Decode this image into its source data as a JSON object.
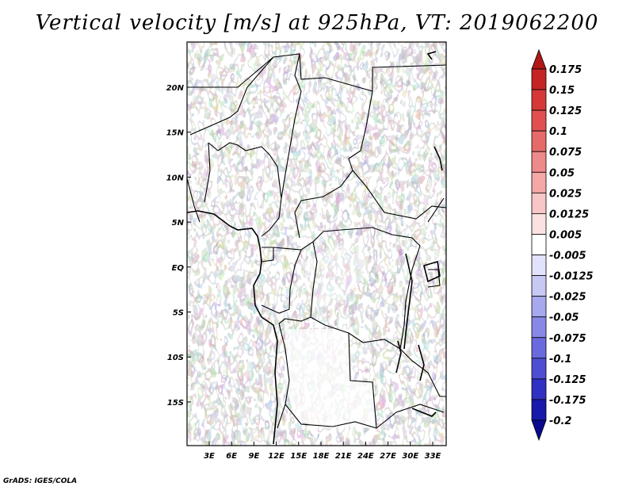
{
  "title": "Vertical velocity [m/s] at 925hPa, VT: 2019062200",
  "footer": "GrADS: IGES/COLA",
  "map": {
    "region": "Central Africa",
    "lat_labels": [
      "20N",
      "15N",
      "10N",
      "5N",
      "EQ",
      "5S",
      "10S",
      "15S"
    ],
    "lon_labels": [
      "3E",
      "6E",
      "9E",
      "12E",
      "15E",
      "18E",
      "21E",
      "24E",
      "27E",
      "30E",
      "33E"
    ]
  },
  "colorbar": {
    "labels": [
      "0.175",
      "0.15",
      "0.125",
      "0.1",
      "0.075",
      "0.05",
      "0.025",
      "0.0125",
      "0.005",
      "-0.005",
      "-0.0125",
      "-0.025",
      "-0.05",
      "-0.075",
      "-0.1",
      "-0.125",
      "-0.175",
      "-0.2"
    ],
    "colors": [
      "#b01818",
      "#c52424",
      "#d63838",
      "#e05050",
      "#e76a6a",
      "#ee8a8a",
      "#f4a8a8",
      "#f8c6c6",
      "#fbe2e2",
      "#ffffff",
      "#e2e2fa",
      "#c8c8f4",
      "#a8a8ee",
      "#8888e6",
      "#6a6ade",
      "#4e4ed2",
      "#3030c2",
      "#1818aa",
      "#0a0a90"
    ]
  },
  "chart_data": {
    "type": "heatmap",
    "title": "Vertical velocity [m/s] at 925hPa, VT: 2019062200",
    "variable": "Vertical velocity",
    "units": "m/s",
    "level": "925hPa",
    "valid_time": "2019062200",
    "x_range_deg_E": [
      0,
      35
    ],
    "y_range_deg": [
      -20,
      25
    ],
    "contour_levels": [
      -0.2,
      -0.175,
      -0.125,
      -0.1,
      -0.075,
      -0.05,
      -0.025,
      -0.0125,
      -0.005,
      0.005,
      0.0125,
      0.025,
      0.05,
      0.075,
      0.1,
      0.125,
      0.15,
      0.175
    ]
  }
}
